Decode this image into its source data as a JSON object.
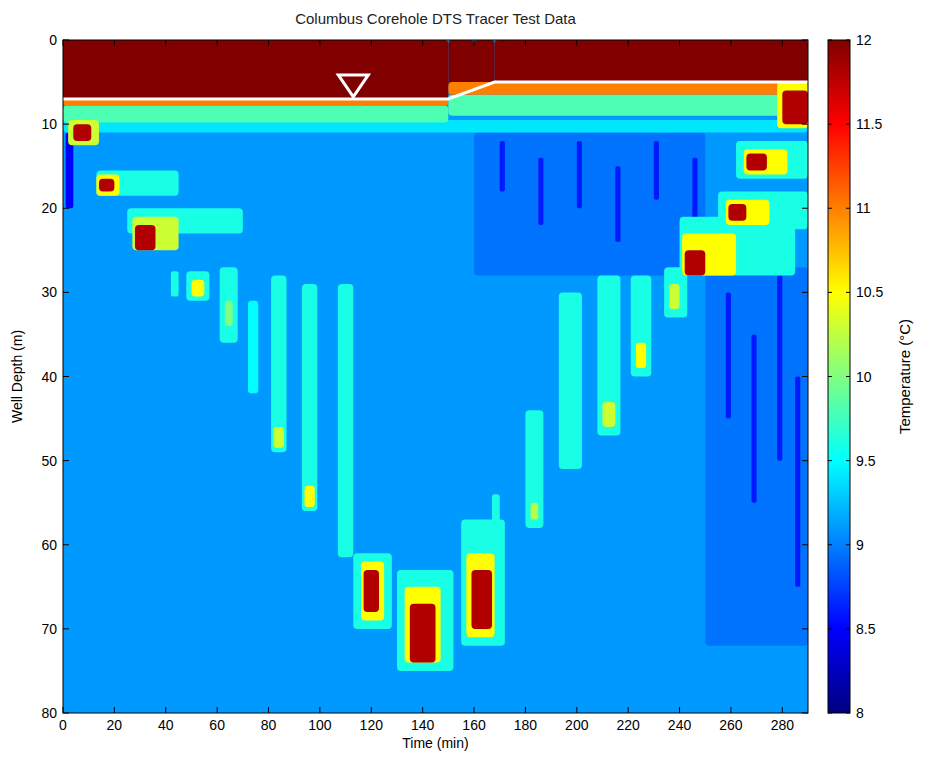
{
  "chart_data": {
    "type": "heatmap",
    "title": "Columbus Corehole DTS Tracer Test Data",
    "x_label": "Time (min)",
    "y_label": "Well Depth (m)",
    "colorbar_label": "Temperature (°C)",
    "xlim": [
      0,
      290
    ],
    "ylim": [
      80,
      0
    ],
    "xticks": [
      0,
      20,
      40,
      60,
      80,
      100,
      120,
      140,
      160,
      180,
      200,
      220,
      240,
      260,
      280
    ],
    "yticks": [
      0,
      10,
      20,
      30,
      40,
      50,
      60,
      70,
      80
    ],
    "color_range": [
      8,
      12
    ],
    "color_ticks": [
      8,
      8.5,
      9,
      9.5,
      10,
      10.5,
      11,
      11.5,
      12
    ],
    "water_table": {
      "x": [
        0,
        150,
        168,
        290
      ],
      "y": [
        7,
        7,
        5,
        5
      ],
      "marker_x": 113,
      "color": "#ffffff",
      "marker": "triangle"
    },
    "cells": [
      [
        0,
        290,
        0,
        80,
        9.1
      ],
      [
        160,
        250,
        11,
        28,
        8.95
      ],
      [
        250,
        290,
        27,
        72,
        8.95
      ],
      [
        170,
        172,
        12,
        18,
        8.6
      ],
      [
        185,
        187,
        14,
        22,
        8.6
      ],
      [
        200,
        202,
        12,
        20,
        8.6
      ],
      [
        215,
        217,
        15,
        24,
        8.6
      ],
      [
        230,
        232,
        12,
        19,
        8.6
      ],
      [
        245,
        247,
        14,
        23,
        8.6
      ],
      [
        258,
        260,
        30,
        45,
        8.6
      ],
      [
        268,
        270,
        35,
        55,
        8.6
      ],
      [
        278,
        280,
        28,
        50,
        8.6
      ],
      [
        285,
        287,
        40,
        65,
        8.6
      ],
      [
        1,
        4,
        11,
        20,
        8.5
      ],
      [
        0,
        150,
        0,
        7,
        12
      ],
      [
        150,
        160,
        0,
        6.5,
        12
      ],
      [
        160,
        168,
        0,
        5.7,
        12
      ],
      [
        168,
        290,
        0,
        5,
        12
      ],
      [
        0,
        290,
        9.5,
        11,
        9.4
      ],
      [
        0,
        150,
        7.8,
        9.8,
        9.8
      ],
      [
        150,
        290,
        6.5,
        9,
        9.8
      ],
      [
        0,
        150,
        7,
        7.8,
        11
      ],
      [
        150,
        290,
        5,
        6.5,
        11
      ],
      [
        2,
        14,
        9.5,
        12.5,
        10.3
      ],
      [
        4,
        11,
        10,
        12,
        11.8
      ],
      [
        13,
        45,
        15.5,
        18.5,
        9.6
      ],
      [
        13,
        22,
        16,
        18.5,
        10.5
      ],
      [
        14,
        20,
        16.5,
        18,
        11.8
      ],
      [
        25,
        70,
        20,
        23,
        9.6
      ],
      [
        27,
        45,
        21,
        25,
        10.3
      ],
      [
        28,
        36,
        22,
        25,
        11.8
      ],
      [
        42,
        45,
        27.5,
        30.5,
        9.6
      ],
      [
        48,
        57,
        27.5,
        31,
        9.6
      ],
      [
        50,
        55,
        28.5,
        30.5,
        10.5
      ],
      [
        61,
        68,
        27,
        36,
        9.6
      ],
      [
        63,
        66,
        31,
        34,
        10
      ],
      [
        72,
        76,
        31,
        42,
        9.5
      ],
      [
        81,
        87,
        28,
        49,
        9.6
      ],
      [
        82,
        86,
        46,
        48.5,
        10.3
      ],
      [
        93,
        99,
        29,
        56,
        9.6
      ],
      [
        94,
        98,
        53,
        55.5,
        10.5
      ],
      [
        107,
        113,
        29,
        61.5,
        9.6
      ],
      [
        113,
        128,
        61,
        70,
        9.6
      ],
      [
        116,
        125,
        62,
        69,
        10.5
      ],
      [
        117,
        123,
        63,
        68,
        11.8
      ],
      [
        130,
        152,
        63,
        75,
        9.6
      ],
      [
        133,
        147,
        65,
        74,
        10.5
      ],
      [
        135,
        145,
        67,
        74,
        11.8
      ],
      [
        167,
        170,
        54,
        60,
        9.6
      ],
      [
        155,
        172,
        57,
        72,
        9.6
      ],
      [
        157,
        168,
        61,
        71,
        10.5
      ],
      [
        159,
        167,
        63,
        70,
        11.8
      ],
      [
        180,
        187,
        44,
        58,
        9.6
      ],
      [
        182,
        185,
        55,
        57,
        10.2
      ],
      [
        193,
        202,
        30,
        51,
        9.6
      ],
      [
        208,
        217,
        28,
        47,
        9.6
      ],
      [
        210,
        215,
        43,
        46,
        10.3
      ],
      [
        221,
        229,
        28,
        40,
        9.6
      ],
      [
        223,
        227,
        36,
        39,
        10.5
      ],
      [
        234,
        243,
        27,
        33,
        9.6
      ],
      [
        236,
        240,
        29,
        32,
        10.3
      ],
      [
        240,
        285,
        21,
        28,
        9.6
      ],
      [
        241,
        262,
        23,
        28,
        10.5
      ],
      [
        242,
        250,
        25,
        28,
        11.8
      ],
      [
        255,
        290,
        18,
        22.5,
        9.6
      ],
      [
        258,
        275,
        19,
        22,
        10.5
      ],
      [
        259,
        266,
        19.5,
        21.5,
        11.8
      ],
      [
        262,
        290,
        12,
        16.5,
        9.6
      ],
      [
        265,
        282,
        13,
        16,
        10.5
      ],
      [
        266,
        274,
        13.5,
        15.5,
        11.8
      ],
      [
        278,
        290,
        5,
        10.5,
        10.5
      ],
      [
        280,
        290,
        6,
        10,
        11.8
      ]
    ]
  }
}
